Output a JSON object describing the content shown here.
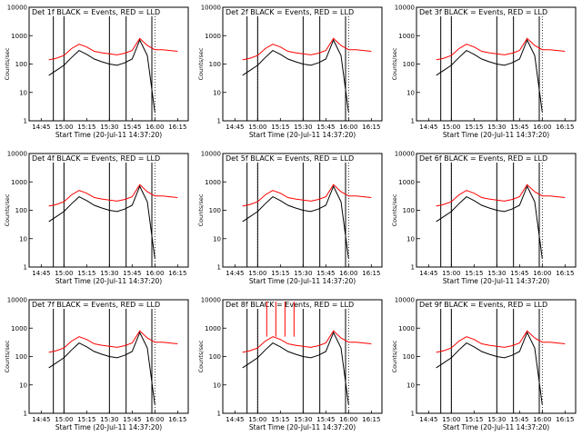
{
  "colors": {
    "events": "#000000",
    "lld": "#ff0000",
    "frame": "#000000",
    "background": "#ffffff"
  },
  "x_ticks": [
    "14:45",
    "15:00",
    "15:15",
    "15:30",
    "15:45",
    "16:00",
    "16:15"
  ],
  "y_ticks": [
    "1",
    "10",
    "100",
    "1000",
    "10000"
  ],
  "ylabel": "Counts/sec",
  "xlabel": "Start Time (20-Jul-11 14:37:20)",
  "chart_data": [
    {
      "type": "line",
      "title": "Det 1f BLACK = Events, RED = LLD",
      "xlabel": "Start Time (20-Jul-11 14:37:20)",
      "ylabel": "Counts/sec",
      "ylim": [
        1,
        10000
      ],
      "y_scale": "log",
      "x": [
        "14:50",
        "14:55",
        "15:00",
        "15:05",
        "15:10",
        "15:15",
        "15:20",
        "15:25",
        "15:30",
        "15:35",
        "15:40",
        "15:45",
        "15:50",
        "15:55",
        "16:00",
        "16:05",
        "16:10",
        "16:15"
      ],
      "vlines": [
        "14:53",
        "15:00",
        "15:30",
        "15:41",
        "15:58"
      ],
      "series": [
        {
          "name": "Events",
          "color": "#000000",
          "values": [
            40,
            60,
            90,
            170,
            300,
            220,
            150,
            120,
            100,
            90,
            110,
            150,
            700,
            200,
            2,
            null,
            null,
            null
          ]
        },
        {
          "name": "LLD",
          "color": "#ff0000",
          "values": [
            140,
            160,
            200,
            350,
            500,
            400,
            280,
            250,
            230,
            210,
            240,
            300,
            800,
            450,
            320,
            320,
            300,
            280
          ]
        }
      ]
    },
    {
      "type": "line",
      "title": "Det 2f BLACK = Events, RED = LLD",
      "xlabel": "Start Time (20-Jul-11 14:37:20)",
      "ylabel": "Counts/sec",
      "ylim": [
        1,
        10000
      ],
      "y_scale": "log",
      "x": [
        "14:50",
        "14:55",
        "15:00",
        "15:05",
        "15:10",
        "15:15",
        "15:20",
        "15:25",
        "15:30",
        "15:35",
        "15:40",
        "15:45",
        "15:50",
        "15:55",
        "16:00",
        "16:05",
        "16:10",
        "16:15"
      ],
      "vlines": [
        "14:53",
        "15:00",
        "15:30",
        "15:41",
        "15:58"
      ],
      "series": [
        {
          "name": "Events",
          "color": "#000000",
          "values": [
            40,
            60,
            90,
            170,
            300,
            220,
            150,
            120,
            100,
            90,
            110,
            150,
            700,
            200,
            2,
            null,
            null,
            null
          ]
        },
        {
          "name": "LLD",
          "color": "#ff0000",
          "values": [
            140,
            160,
            200,
            350,
            500,
            400,
            280,
            250,
            230,
            210,
            240,
            300,
            800,
            450,
            320,
            320,
            300,
            280
          ]
        }
      ]
    },
    {
      "type": "line",
      "title": "Det 3f BLACK = Events, RED = LLD",
      "xlabel": "Start Time (20-Jul-11 14:37:20)",
      "ylabel": "Counts/sec",
      "ylim": [
        1,
        10000
      ],
      "y_scale": "log",
      "x": [
        "14:50",
        "14:55",
        "15:00",
        "15:05",
        "15:10",
        "15:15",
        "15:20",
        "15:25",
        "15:30",
        "15:35",
        "15:40",
        "15:45",
        "15:50",
        "15:55",
        "16:00",
        "16:05",
        "16:10",
        "16:15"
      ],
      "vlines": [
        "14:53",
        "15:00",
        "15:30",
        "15:41",
        "15:58"
      ],
      "series": [
        {
          "name": "Events",
          "color": "#000000",
          "values": [
            40,
            60,
            90,
            170,
            300,
            220,
            150,
            120,
            100,
            90,
            110,
            150,
            700,
            200,
            2,
            null,
            null,
            null
          ]
        },
        {
          "name": "LLD",
          "color": "#ff0000",
          "values": [
            140,
            160,
            200,
            350,
            500,
            400,
            280,
            250,
            230,
            210,
            240,
            300,
            800,
            450,
            320,
            320,
            300,
            280
          ]
        }
      ]
    },
    {
      "type": "line",
      "title": "Det 4f BLACK = Events, RED = LLD",
      "xlabel": "Start Time (20-Jul-11 14:37:20)",
      "ylabel": "Counts/sec",
      "ylim": [
        1,
        10000
      ],
      "y_scale": "log",
      "x": [
        "14:50",
        "14:55",
        "15:00",
        "15:05",
        "15:10",
        "15:15",
        "15:20",
        "15:25",
        "15:30",
        "15:35",
        "15:40",
        "15:45",
        "15:50",
        "15:55",
        "16:00",
        "16:05",
        "16:10",
        "16:15"
      ],
      "vlines": [
        "14:53",
        "15:00",
        "15:30",
        "15:41",
        "15:58"
      ],
      "series": [
        {
          "name": "Events",
          "color": "#000000",
          "values": [
            40,
            60,
            90,
            170,
            300,
            220,
            150,
            120,
            100,
            90,
            110,
            150,
            700,
            200,
            2,
            null,
            null,
            null
          ]
        },
        {
          "name": "LLD",
          "color": "#ff0000",
          "values": [
            140,
            160,
            200,
            350,
            500,
            400,
            280,
            250,
            230,
            210,
            240,
            300,
            800,
            450,
            320,
            320,
            300,
            280
          ]
        }
      ]
    },
    {
      "type": "line",
      "title": "Det 5f BLACK = Events, RED = LLD",
      "xlabel": "Start Time (20-Jul-11 14:37:20)",
      "ylabel": "Counts/sec",
      "ylim": [
        1,
        10000
      ],
      "y_scale": "log",
      "x": [
        "14:50",
        "14:55",
        "15:00",
        "15:05",
        "15:10",
        "15:15",
        "15:20",
        "15:25",
        "15:30",
        "15:35",
        "15:40",
        "15:45",
        "15:50",
        "15:55",
        "16:00",
        "16:05",
        "16:10",
        "16:15"
      ],
      "vlines": [
        "14:53",
        "15:00",
        "15:30",
        "15:41",
        "15:58"
      ],
      "series": [
        {
          "name": "Events",
          "color": "#000000",
          "values": [
            40,
            60,
            90,
            170,
            300,
            220,
            150,
            120,
            100,
            90,
            110,
            150,
            700,
            200,
            2,
            null,
            null,
            null
          ]
        },
        {
          "name": "LLD",
          "color": "#ff0000",
          "values": [
            140,
            160,
            200,
            350,
            500,
            400,
            280,
            250,
            230,
            210,
            240,
            300,
            800,
            450,
            320,
            320,
            300,
            280
          ]
        }
      ]
    },
    {
      "type": "line",
      "title": "Det 6f BLACK = Events, RED = LLD",
      "xlabel": "Start Time (20-Jul-11 14:37:20)",
      "ylabel": "Counts/sec",
      "ylim": [
        1,
        10000
      ],
      "y_scale": "log",
      "x": [
        "14:50",
        "14:55",
        "15:00",
        "15:05",
        "15:10",
        "15:15",
        "15:20",
        "15:25",
        "15:30",
        "15:35",
        "15:40",
        "15:45",
        "15:50",
        "15:55",
        "16:00",
        "16:05",
        "16:10",
        "16:15"
      ],
      "vlines": [
        "14:53",
        "15:00",
        "15:30",
        "15:41",
        "15:58"
      ],
      "series": [
        {
          "name": "Events",
          "color": "#000000",
          "values": [
            40,
            60,
            90,
            170,
            300,
            220,
            150,
            120,
            100,
            90,
            110,
            150,
            700,
            200,
            2,
            null,
            null,
            null
          ]
        },
        {
          "name": "LLD",
          "color": "#ff0000",
          "values": [
            140,
            160,
            200,
            350,
            500,
            400,
            280,
            250,
            230,
            210,
            240,
            300,
            800,
            450,
            320,
            320,
            300,
            280
          ]
        }
      ]
    },
    {
      "type": "line",
      "title": "Det 7f BLACK = Events, RED = LLD",
      "xlabel": "Start Time (20-Jul-11 14:37:20)",
      "ylabel": "Counts/sec",
      "ylim": [
        1,
        10000
      ],
      "y_scale": "log",
      "x": [
        "14:50",
        "14:55",
        "15:00",
        "15:05",
        "15:10",
        "15:15",
        "15:20",
        "15:25",
        "15:30",
        "15:35",
        "15:40",
        "15:45",
        "15:50",
        "15:55",
        "16:00",
        "16:05",
        "16:10",
        "16:15"
      ],
      "vlines": [
        "14:53",
        "15:00",
        "15:30",
        "15:41",
        "15:58"
      ],
      "series": [
        {
          "name": "Events",
          "color": "#000000",
          "values": [
            40,
            60,
            90,
            170,
            300,
            220,
            150,
            120,
            100,
            90,
            110,
            150,
            700,
            200,
            2,
            null,
            null,
            null
          ]
        },
        {
          "name": "LLD",
          "color": "#ff0000",
          "values": [
            140,
            160,
            200,
            350,
            500,
            400,
            280,
            250,
            230,
            210,
            240,
            300,
            800,
            450,
            320,
            320,
            300,
            280
          ]
        }
      ]
    },
    {
      "type": "line",
      "title": "Det 8f BLACK = Events, RED = LLD",
      "xlabel": "Start Time (20-Jul-11 14:37:20)",
      "ylabel": "Counts/sec",
      "ylim": [
        1,
        10000
      ],
      "y_scale": "log",
      "x": [
        "14:50",
        "14:55",
        "15:00",
        "15:05",
        "15:10",
        "15:15",
        "15:20",
        "15:25",
        "15:30",
        "15:35",
        "15:40",
        "15:45",
        "15:50",
        "15:55",
        "16:00",
        "16:05",
        "16:10",
        "16:15"
      ],
      "vlines": [
        "14:53",
        "15:00",
        "15:30",
        "15:41",
        "15:58"
      ],
      "spikes": [
        "15:06",
        "15:12",
        "15:18",
        "15:24"
      ],
      "series": [
        {
          "name": "Events",
          "color": "#000000",
          "values": [
            40,
            60,
            90,
            170,
            300,
            220,
            150,
            120,
            100,
            90,
            110,
            150,
            700,
            200,
            2,
            null,
            null,
            null
          ]
        },
        {
          "name": "LLD",
          "color": "#ff0000",
          "values": [
            140,
            160,
            200,
            350,
            500,
            400,
            280,
            250,
            230,
            210,
            240,
            300,
            800,
            450,
            320,
            320,
            300,
            280
          ]
        }
      ]
    },
    {
      "type": "line",
      "title": "Det 9f BLACK = Events, RED = LLD",
      "xlabel": "Start Time (20-Jul-11 14:37:20)",
      "ylabel": "Counts/sec",
      "ylim": [
        1,
        10000
      ],
      "y_scale": "log",
      "x": [
        "14:50",
        "14:55",
        "15:00",
        "15:05",
        "15:10",
        "15:15",
        "15:20",
        "15:25",
        "15:30",
        "15:35",
        "15:40",
        "15:45",
        "15:50",
        "15:55",
        "16:00",
        "16:05",
        "16:10",
        "16:15"
      ],
      "vlines": [
        "14:53",
        "15:00",
        "15:30",
        "15:41",
        "15:58"
      ],
      "series": [
        {
          "name": "Events",
          "color": "#000000",
          "values": [
            40,
            60,
            90,
            170,
            300,
            220,
            150,
            120,
            100,
            90,
            110,
            150,
            700,
            200,
            2,
            null,
            null,
            null
          ]
        },
        {
          "name": "LLD",
          "color": "#ff0000",
          "values": [
            140,
            160,
            200,
            350,
            500,
            400,
            280,
            250,
            230,
            210,
            240,
            300,
            800,
            450,
            320,
            320,
            300,
            280
          ]
        }
      ]
    }
  ]
}
